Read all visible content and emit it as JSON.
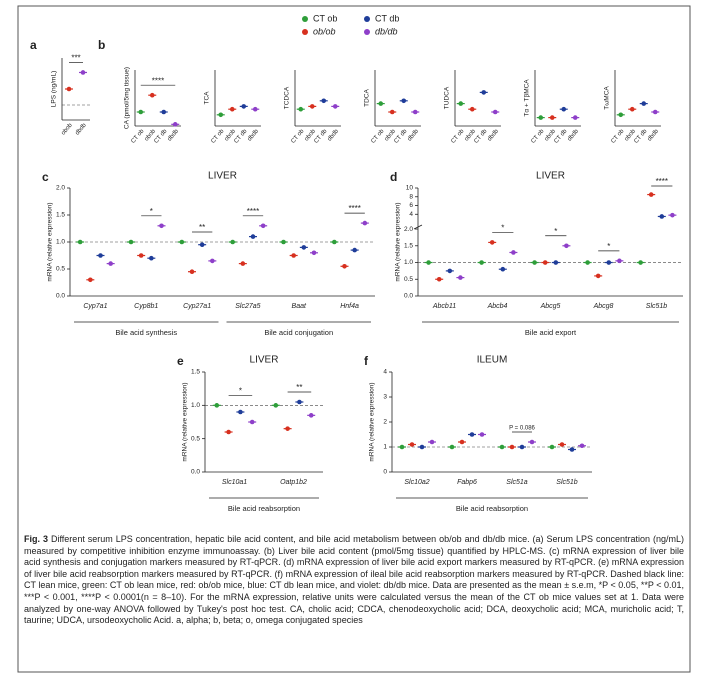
{
  "legend": [
    {
      "name": "CT ob",
      "color": "#2e9e3a"
    },
    {
      "name": "ob/ob",
      "color": "#d7301f"
    },
    {
      "name": "CT db",
      "color": "#1f3d99"
    },
    {
      "name": "db/db",
      "color": "#8e3fc9"
    }
  ],
  "panel_a": {
    "letter": "a",
    "ylabel": "LPS (ng/mL)",
    "categories": [
      "obob",
      "dbdb"
    ],
    "colors": [
      "#d7301f",
      "#8e3fc9"
    ],
    "values": [
      150,
      230
    ],
    "ylim": [
      0,
      300
    ],
    "annotation": "***"
  },
  "panel_b": {
    "letter": "b",
    "colors": [
      "#2e9e3a",
      "#d7301f",
      "#1f3d99",
      "#8e3fc9"
    ],
    "plots": [
      {
        "ylabel": "CA (pmol/5mg tissue)",
        "categories": [
          "CT ob",
          "obob",
          "CT db",
          "dbdb"
        ],
        "values": [
          0.25,
          0.55,
          0.25,
          0.03
        ],
        "ylim": [
          0,
          1
        ],
        "annotation": "****"
      },
      {
        "ylabel": "TCA",
        "categories": [
          "CT ob",
          "obob",
          "CT db",
          "dbdb"
        ],
        "values": [
          0.2,
          0.3,
          0.35,
          0.3
        ],
        "ylim": [
          0,
          1
        ]
      },
      {
        "ylabel": "TCDCA",
        "categories": [
          "CT ob",
          "obob",
          "CT db",
          "dbdb"
        ],
        "values": [
          0.3,
          0.35,
          0.45,
          0.35
        ],
        "ylim": [
          0,
          1
        ]
      },
      {
        "ylabel": "TDCA",
        "categories": [
          "CT ob",
          "obob",
          "CT db",
          "dbdb"
        ],
        "values": [
          0.4,
          0.25,
          0.45,
          0.25
        ],
        "ylim": [
          0,
          1
        ]
      },
      {
        "ylabel": "TUDCA",
        "categories": [
          "CT ob",
          "obob",
          "CT db",
          "dbdb"
        ],
        "values": [
          0.4,
          0.3,
          0.6,
          0.25
        ],
        "ylim": [
          0,
          1
        ]
      },
      {
        "ylabel": "Tα + TβMCA",
        "categories": [
          "CT ob",
          "obob",
          "CT db",
          "dbdb"
        ],
        "values": [
          0.15,
          0.15,
          0.3,
          0.15
        ],
        "ylim": [
          0,
          1
        ]
      },
      {
        "ylabel": "TωMCA",
        "categories": [
          "CT ob",
          "obob",
          "CT db",
          "dbdb"
        ],
        "values": [
          0.2,
          0.3,
          0.4,
          0.25
        ],
        "ylim": [
          0,
          1
        ]
      }
    ]
  },
  "panel_c": {
    "letter": "c",
    "title": "LIVER",
    "ylabel": "mRNA (relative expression)",
    "ylim": [
      0,
      2
    ],
    "yticks": [
      {
        "value": 0,
        "label": "0.0"
      },
      0.5,
      {
        "value": 1,
        "label": "1.0"
      },
      1.5,
      {
        "value": 2,
        "label": "2.0"
      }
    ],
    "groups": [
      {
        "label": "Bile acid synthesis",
        "genes": [
          {
            "name": "Cyp7a1",
            "values": [
              1.0,
              0.3,
              0.75,
              0.6
            ]
          },
          {
            "name": "Cyp8b1",
            "values": [
              1.0,
              0.75,
              0.7,
              1.3
            ],
            "annotation": "*"
          },
          {
            "name": "Cyp27a1",
            "values": [
              1.0,
              0.45,
              0.95,
              0.65
            ],
            "annotation": "**"
          }
        ]
      },
      {
        "label": "Bile acid conjugation",
        "genes": [
          {
            "name": "Slc27a5",
            "values": [
              1.0,
              0.6,
              1.1,
              1.3
            ],
            "annotation": "****"
          },
          {
            "name": "Baat",
            "values": [
              1.0,
              0.75,
              0.9,
              0.8
            ]
          },
          {
            "name": "Hnf4a",
            "values": [
              1.0,
              0.55,
              0.85,
              1.35
            ],
            "annotation": "****"
          }
        ]
      }
    ]
  },
  "panel_d": {
    "letter": "d",
    "title": "LIVER",
    "ylabel": "mRNA (relative expression)",
    "ylim": [
      0,
      10
    ],
    "ybreak": 2,
    "yticks": [
      {
        "value": 0,
        "label": "0.0"
      },
      0.5,
      {
        "value": 1,
        "label": "1.0"
      },
      1.5,
      {
        "value": 2,
        "label": "2.0"
      },
      4,
      6,
      8,
      10
    ],
    "groups": [
      {
        "label": "Bile acid export",
        "genes": [
          {
            "name": "Abcb11",
            "values": [
              1.0,
              0.5,
              0.75,
              0.55
            ]
          },
          {
            "name": "Abcb4",
            "values": [
              1.0,
              1.6,
              0.8,
              1.3
            ],
            "annotation": "*"
          },
          {
            "name": "Abcg5",
            "values": [
              1.0,
              1.0,
              1.0,
              1.5
            ],
            "annotation": "*"
          },
          {
            "name": "Abcg8",
            "values": [
              1.0,
              0.6,
              1.0,
              1.05
            ],
            "annotation": "*"
          },
          {
            "name": "Slc51b",
            "values": [
              1.0,
              8.5,
              3.5,
              3.8
            ],
            "annotation": "****"
          }
        ]
      }
    ]
  },
  "panel_e": {
    "letter": "e",
    "title": "LIVER",
    "ylabel": "mRNA (relative expression)",
    "ylim": [
      0,
      1.5
    ],
    "yticks": [
      {
        "value": 0,
        "label": "0.0"
      },
      0.5,
      {
        "value": 1,
        "label": "1.0"
      },
      1.5
    ],
    "groups": [
      {
        "label": "Bile acid reabsorption",
        "genes": [
          {
            "name": "Slc10a1",
            "values": [
              1.0,
              0.6,
              0.9,
              0.75
            ],
            "annotation": "*"
          },
          {
            "name": "Oatp1b2",
            "values": [
              1.0,
              0.65,
              1.05,
              0.85
            ],
            "annotation": "**"
          }
        ]
      }
    ]
  },
  "panel_f": {
    "letter": "f",
    "title": "ILEUM",
    "ylabel": "mRNA (relative expression)",
    "ylim": [
      0,
      4
    ],
    "yticks": [
      0,
      1,
      2,
      3,
      4
    ],
    "groups": [
      {
        "label": "Bile acid reabsorption",
        "genes": [
          {
            "name": "Slc10a2",
            "values": [
              1.0,
              1.1,
              1.0,
              1.2
            ]
          },
          {
            "name": "Fabp6",
            "values": [
              1.0,
              1.2,
              1.5,
              1.5
            ]
          },
          {
            "name": "Slc51a",
            "values": [
              1.0,
              1.0,
              1.0,
              1.2
            ],
            "annotation": "P = 0.086"
          },
          {
            "name": "Slc51b",
            "values": [
              1.0,
              1.1,
              0.9,
              1.05
            ]
          }
        ]
      }
    ]
  },
  "caption": {
    "label": "Fig. 3",
    "text": "Different serum LPS concentration, hepatic bile acid content, and bile acid metabolism between ob/ob and db/db mice. (a) Serum LPS concentration (ng/mL) measured by competitive inhibition enzyme immunoassay. (b) Liver bile acid content (pmol/5mg tissue) quantified by HPLC-MS. (c) mRNA expression of liver bile acid synthesis and conjugation markers measured by RT-qPCR. (d) mRNA expression of liver bile acid export markers measured by RT-qPCR. (e) mRNA expression of liver bile acid reabsorption markers measured by RT-qPCR. (f) mRNA expression of ileal bile acid reabsorption markers measured by RT-qPCR. Dashed black line: CT lean mice, green: CT ob lean mice, red: ob/ob mice, blue: CT db lean mice, and violet: db/db mice. Data are presented as the mean ± s.e.m, *P < 0.05, **P < 0.01, ***P < 0.001, ****P < 0.0001(n = 8–10). For the mRNA expression, relative units were calculated versus the mean of the CT ob mice values set at 1. Data were analyzed by one-way ANOVA followed by Tukey's post hoc test. CA, cholic acid; CDCA, chenodeoxycholic acid; DCA, deoxycholic acid; MCA, muricholic acid; T, taurine; UDCA, ursodeoxycholic Acid. a, alpha; b, beta; o, omega conjugated species"
  }
}
